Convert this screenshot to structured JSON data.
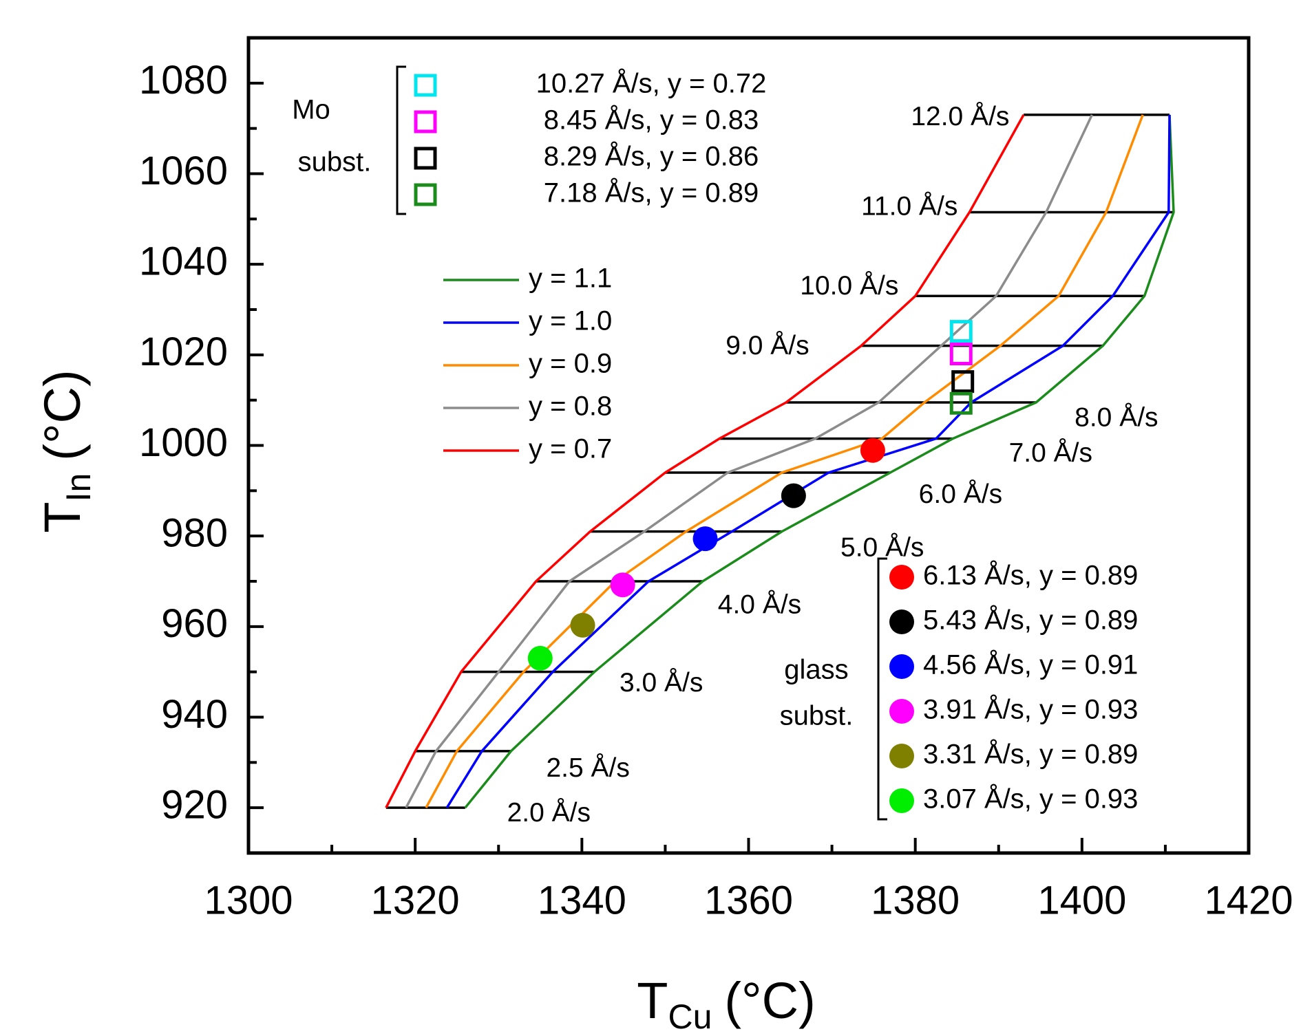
{
  "chart_data": {
    "type": "line",
    "xlabel": "T",
    "xlabel_sub": "Cu",
    "xlabel_unit": "(°C)",
    "ylabel": "T",
    "ylabel_sub": "In",
    "ylabel_unit": "(°C)",
    "xlim": [
      1300,
      1420
    ],
    "xticks": [
      1300,
      1320,
      1340,
      1360,
      1380,
      1400,
      1420
    ],
    "xminor_ticks": [
      1310,
      1330,
      1350,
      1370,
      1390,
      1410
    ],
    "ylim": [
      910,
      1090
    ],
    "yticks": [
      920,
      940,
      960,
      980,
      1000,
      1020,
      1040,
      1060,
      1080
    ],
    "yminor_ticks": [
      930,
      950,
      970,
      990,
      1010,
      1030,
      1050,
      1070
    ],
    "series": [
      {
        "name": "y = 1.1",
        "color": "#1b8c1b",
        "x": [
          1326,
          1331.5,
          1341.5,
          1354.5,
          1364,
          1377,
          1384.5,
          1394.5,
          1402.5,
          1407.5,
          1411,
          1410.5
        ],
        "values": [
          920,
          932.5,
          950,
          970,
          981,
          994,
          1001.5,
          1009.5,
          1022,
          1033,
          1051.5,
          1073
        ]
      },
      {
        "name": "y = 1.0",
        "color": "#0000ff",
        "x": [
          1323.8,
          1328,
          1336.5,
          1348,
          1358,
          1369.6,
          1382.5,
          1386.7,
          1397.7,
          1403.7,
          1410.4,
          1410.5
        ],
        "values": [
          920,
          932.5,
          950,
          970,
          981,
          994,
          1001.5,
          1009.5,
          1022,
          1033,
          1051.5,
          1073
        ]
      },
      {
        "name": "y = 0.9",
        "color": "#ff8c00",
        "x": [
          1321.3,
          1325,
          1333,
          1344,
          1352.5,
          1364,
          1376,
          1381.1,
          1390.2,
          1397.2,
          1402.9,
          1407.3
        ],
        "values": [
          920,
          932.5,
          950,
          970,
          981,
          994,
          1001.5,
          1009.5,
          1022,
          1033,
          1051.5,
          1073
        ]
      },
      {
        "name": "y = 0.8",
        "color": "#8c8c8c",
        "x": [
          1318.9,
          1322.5,
          1330,
          1338.5,
          1347.5,
          1357.5,
          1368,
          1375.6,
          1383.1,
          1389.7,
          1395.7,
          1401.2
        ],
        "values": [
          920,
          932.5,
          950,
          970,
          981,
          994,
          1001.5,
          1009.5,
          1022,
          1033,
          1051.5,
          1073
        ]
      },
      {
        "name": "y = 0.7",
        "color": "#ff0000",
        "x": [
          1316.5,
          1320,
          1325.5,
          1334.5,
          1341,
          1350,
          1356.5,
          1364.5,
          1373.5,
          1380,
          1386.5,
          1393
        ],
        "values": [
          920,
          932.5,
          950,
          970,
          981,
          994,
          1001.5,
          1009.5,
          1022,
          1033,
          1051.5,
          1073
        ]
      }
    ],
    "rates": {
      "labels": [
        "2.0 Å/s",
        "2.5 Å/s",
        "3.0 Å/s",
        "4.0 Å/s",
        "5.0 Å/s",
        "6.0 Å/s",
        "7.0 Å/s",
        "8.0 Å/s",
        "9.0 Å/s",
        "10.0 Å/s",
        "11.0 Å/s",
        "12.0 Å/s"
      ],
      "values": [
        920,
        932.5,
        950,
        970,
        981,
        994,
        1001.5,
        1009.5,
        1022,
        1033,
        1051.5,
        1073
      ]
    },
    "mo_substrate": {
      "label_lines": [
        "Mo",
        "subst."
      ],
      "points": [
        {
          "label": "10.27 Å/s, y = 0.72",
          "color": "#00e5ee",
          "x": 1385.5,
          "y": 1025.2
        },
        {
          "label": "8.45 Å/s, y = 0.83",
          "color": "#ff00ff",
          "x": 1385.5,
          "y": 1020.2
        },
        {
          "label": "8.29 Å/s, y = 0.86",
          "color": "#000000",
          "x": 1385.7,
          "y": 1014.1
        },
        {
          "label": "7.18 Å/s, y = 0.89",
          "color": "#1b8c1b",
          "x": 1385.5,
          "y": 1009.3
        }
      ]
    },
    "glass_substrate": {
      "label_lines": [
        "glass",
        "subst."
      ],
      "points": [
        {
          "label": "6.13 Å/s, y = 0.89",
          "color": "#ff0000",
          "x": 1374.9,
          "y": 998.9
        },
        {
          "label": "5.43 Å/s, y = 0.89",
          "color": "#000000",
          "x": 1365.4,
          "y": 988.9
        },
        {
          "label": "4.56 Å/s, y = 0.91",
          "color": "#0000ff",
          "x": 1354.8,
          "y": 979.4
        },
        {
          "label": "3.91 Å/s, y = 0.93",
          "color": "#ff00ff",
          "x": 1344.9,
          "y": 969.2
        },
        {
          "label": "3.31 Å/s, y = 0.89",
          "color": "#808000",
          "x": 1340.1,
          "y": 960.3
        },
        {
          "label": "3.07 Å/s, y = 0.93",
          "color": "#00ee00",
          "x": 1335.0,
          "y": 953.0
        }
      ]
    }
  }
}
